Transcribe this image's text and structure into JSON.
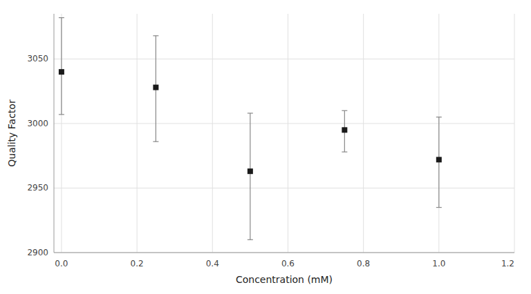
{
  "chart_data": {
    "type": "scatter",
    "marker": "square",
    "color": "#1a1a1a",
    "grid": true,
    "xlabel": "Concentration (mM)",
    "ylabel": "Quality Factor",
    "x": [
      0.0,
      0.25,
      0.5,
      0.75,
      1.0
    ],
    "values": [
      3040,
      3028,
      2963,
      2995,
      2972
    ],
    "error_upper": [
      42,
      40,
      45,
      15,
      33
    ],
    "error_lower": [
      33,
      42,
      53,
      17,
      37
    ],
    "xlim": [
      -0.02,
      1.2
    ],
    "ylim": [
      2900,
      3085
    ],
    "xticks": [
      {
        "value": 0.0,
        "label": "0.0"
      },
      0.2,
      0.4,
      0.6,
      0.8,
      {
        "value": 1.0,
        "label": "1.0"
      },
      1.2
    ],
    "yticks": [
      2900,
      2950,
      3000,
      3050
    ]
  }
}
